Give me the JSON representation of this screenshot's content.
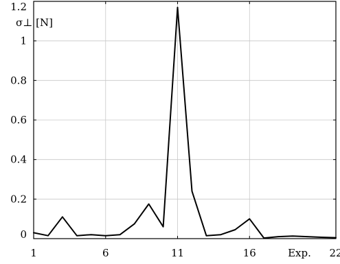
{
  "chart_data": {
    "type": "line",
    "title": "",
    "xlabel": "Exp.",
    "ylabel": "σ⊥ [N]",
    "xlim": [
      1,
      22
    ],
    "ylim": [
      0,
      1.2
    ],
    "x_ticks": [
      1,
      6,
      11,
      16,
      22
    ],
    "x_tick_labels": [
      "1",
      "6",
      "11",
      "16",
      "22"
    ],
    "y_ticks": [
      0,
      0.2,
      0.4,
      0.6,
      0.8,
      1,
      1.2
    ],
    "y_tick_labels": [
      "0",
      "0.2",
      "0.4",
      "0.6",
      "0.8",
      "1",
      "1.2"
    ],
    "grid": true,
    "legend": "none",
    "series": [
      {
        "x": [
          1,
          2,
          3,
          4,
          5,
          6,
          7,
          8,
          9,
          10,
          11,
          12,
          13,
          14,
          15,
          16,
          17,
          18,
          19,
          20,
          21,
          22
        ],
        "values": [
          0.03,
          0.015,
          0.11,
          0.015,
          0.02,
          0.015,
          0.02,
          0.075,
          0.175,
          0.06,
          1.17,
          0.24,
          0.015,
          0.02,
          0.045,
          0.1,
          0.003,
          0.01,
          0.013,
          0.01,
          0.007,
          0.005
        ],
        "color": "#000000"
      }
    ]
  }
}
